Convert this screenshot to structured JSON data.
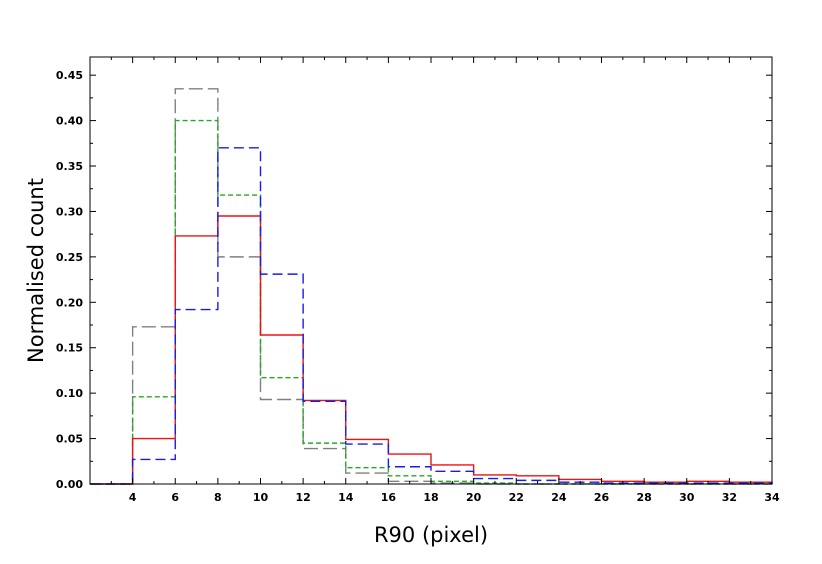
{
  "chart_data": {
    "type": "histogram",
    "title": "",
    "xlabel": "R90 (pixel)",
    "ylabel": "Normalised count",
    "xlim": [
      2,
      34
    ],
    "ylim": [
      0,
      0.47
    ],
    "grid": false,
    "legend": "none",
    "bin_edges": [
      2,
      4,
      6,
      8,
      10,
      12,
      14,
      16,
      18,
      20,
      22,
      24,
      26,
      28,
      30,
      32,
      34
    ],
    "x_ticks": [
      4,
      6,
      8,
      10,
      12,
      14,
      16,
      18,
      20,
      22,
      24,
      26,
      28,
      30,
      32,
      34
    ],
    "y_ticks": [
      0.0,
      0.05,
      0.1,
      0.15,
      0.2,
      0.25,
      0.3,
      0.35,
      0.4,
      0.45
    ],
    "y_tick_labels": [
      "0.00",
      "0.05",
      "0.10",
      "0.15",
      "0.20",
      "0.25",
      "0.30",
      "0.35",
      "0.40",
      "0.45"
    ],
    "series": [
      {
        "color": "#808080",
        "linestyle": "long-dash",
        "values": [
          0.0,
          0.173,
          0.435,
          0.25,
          0.093,
          0.039,
          0.012,
          0.003,
          0.001,
          0.0,
          0.0,
          0.0,
          0.0,
          0.0,
          0.0,
          0.0
        ]
      },
      {
        "color": "#22aa22",
        "linestyle": "dashed",
        "values": [
          0.0,
          0.096,
          0.4,
          0.318,
          0.117,
          0.045,
          0.018,
          0.009,
          0.003,
          0.001,
          0.0,
          0.0,
          0.0,
          0.0,
          0.0,
          0.0
        ]
      },
      {
        "color": "#ee1111",
        "linestyle": "solid",
        "values": [
          0.0,
          0.05,
          0.273,
          0.295,
          0.164,
          0.092,
          0.049,
          0.033,
          0.021,
          0.01,
          0.009,
          0.005,
          0.003,
          0.002,
          0.003,
          0.002
        ]
      },
      {
        "color": "#1a1aee",
        "linestyle": "dash",
        "values": [
          0.0,
          0.027,
          0.192,
          0.37,
          0.231,
          0.091,
          0.044,
          0.019,
          0.014,
          0.006,
          0.004,
          0.002,
          0.001,
          0.001,
          0.001,
          0.001
        ]
      }
    ]
  }
}
